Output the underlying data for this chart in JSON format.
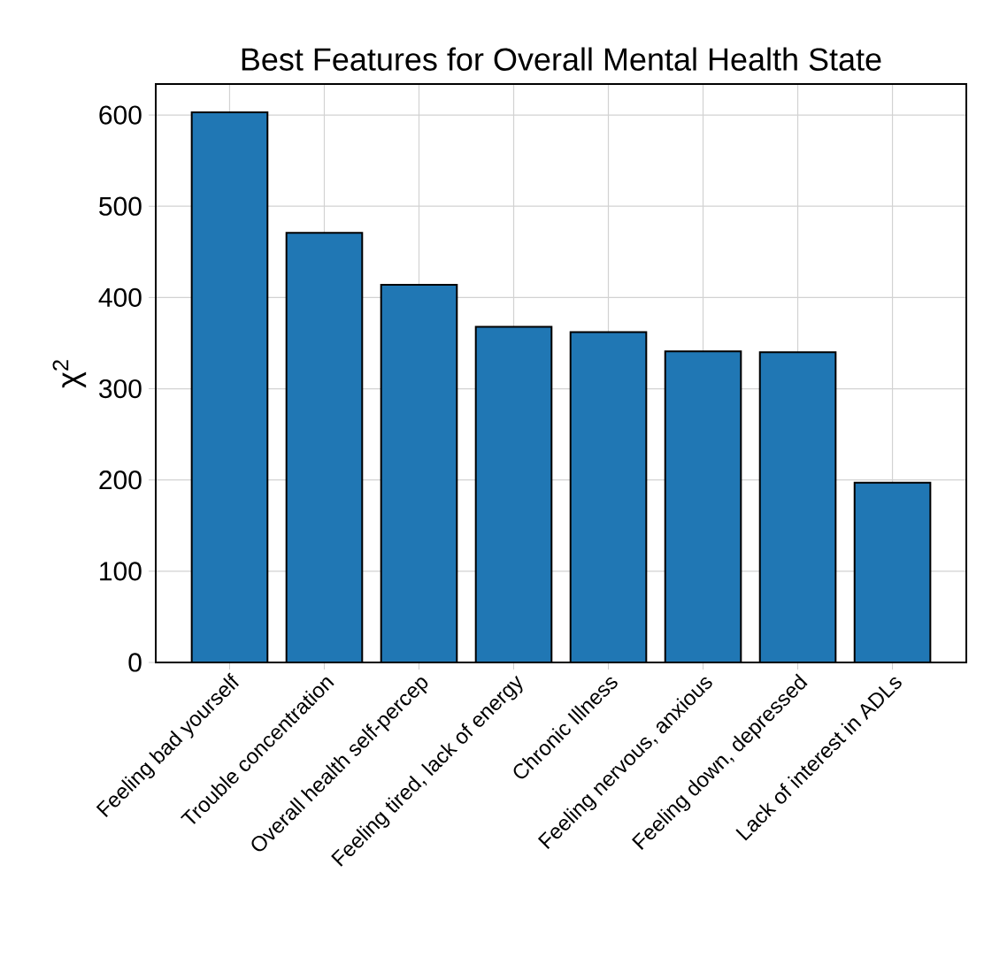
{
  "chart_data": {
    "type": "bar",
    "title": "Best Features for Overall Mental Health State",
    "ylabel": "χ$^{2}$",
    "categories": [
      "Feeling bad yourself",
      "Trouble concentration",
      "Overall health self-percep",
      "Feeling tired, lack of energy",
      "Chronic Illness",
      "Feeling nervous, anxious",
      "Feeling down, depressed",
      "Lack of interest in ADLs"
    ],
    "values": [
      603,
      471,
      414,
      368,
      362,
      341,
      340,
      197
    ],
    "color": "#2077b4",
    "ylim": [
      0,
      634
    ],
    "yticks": [
      0,
      100,
      200,
      300,
      400,
      500,
      600
    ],
    "grid": true
  }
}
